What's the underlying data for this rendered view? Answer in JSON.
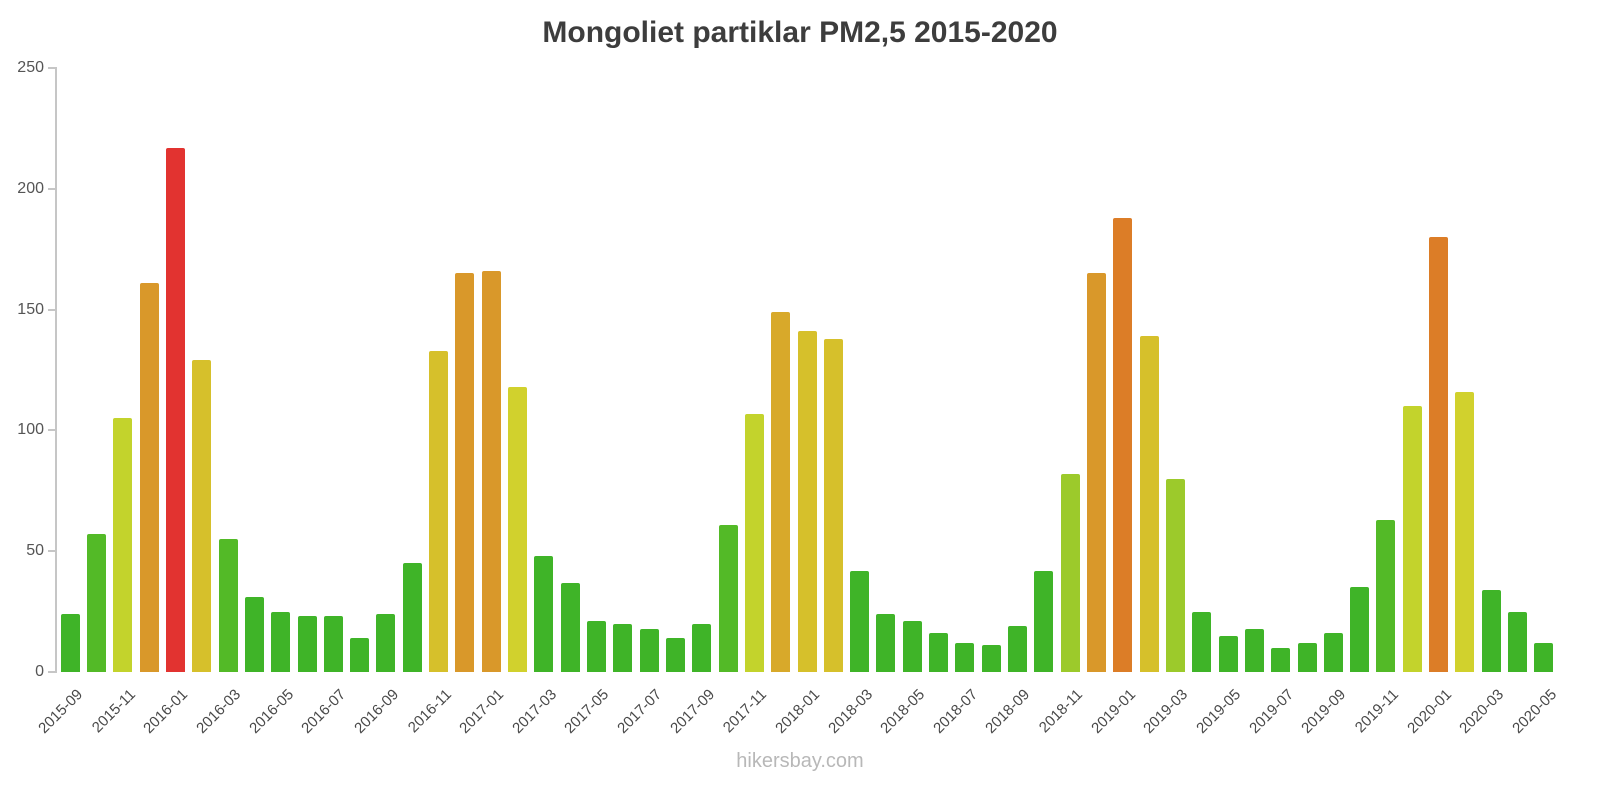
{
  "chart_data": {
    "type": "bar",
    "title": "Mongoliet partiklar PM2,5 2015-2020",
    "xlabel": "",
    "ylabel": "",
    "ylim": [
      0,
      250
    ],
    "yticks": [
      0,
      50,
      100,
      150,
      200,
      250
    ],
    "grid": false,
    "legend": "none",
    "x_tick_every": 2,
    "categories": [
      "2015-09",
      "2015-10",
      "2015-11",
      "2015-12",
      "2016-01",
      "2016-02",
      "2016-03",
      "2016-04",
      "2016-05",
      "2016-06",
      "2016-07",
      "2016-08",
      "2016-09",
      "2016-10",
      "2016-11",
      "2016-12",
      "2017-01",
      "2017-02",
      "2017-03",
      "2017-04",
      "2017-05",
      "2017-06",
      "2017-07",
      "2017-08",
      "2017-09",
      "2017-10",
      "2017-11",
      "2017-12",
      "2018-01",
      "2018-02",
      "2018-03",
      "2018-04",
      "2018-05",
      "2018-06",
      "2018-07",
      "2018-08",
      "2018-09",
      "2018-10",
      "2018-11",
      "2018-12",
      "2019-01",
      "2019-02",
      "2019-03",
      "2019-04",
      "2019-05",
      "2019-06",
      "2019-07",
      "2019-08",
      "2019-09",
      "2019-10",
      "2019-11",
      "2019-12",
      "2020-01",
      "2020-02",
      "2020-03",
      "2020-04",
      "2020-05"
    ],
    "values": [
      24,
      57,
      105,
      161,
      217,
      129,
      55,
      31,
      25,
      23,
      23,
      14,
      24,
      45,
      133,
      165,
      166,
      118,
      48,
      37,
      21,
      20,
      18,
      14,
      20,
      61,
      107,
      149,
      141,
      138,
      42,
      24,
      21,
      16,
      12,
      11,
      19,
      42,
      82,
      165,
      188,
      139,
      80,
      25,
      15,
      18,
      10,
      12,
      16,
      35,
      63,
      110,
      180,
      116,
      34,
      25,
      12
    ],
    "colors": [
      "#3fb428",
      "#53ba27",
      "#c3d32c",
      "#d9982a",
      "#e23330",
      "#d6c02b",
      "#53ba27",
      "#3fb428",
      "#3fb428",
      "#3fb428",
      "#3fb428",
      "#3fb428",
      "#3fb428",
      "#3fb428",
      "#d6c02b",
      "#d9982a",
      "#d9982a",
      "#d1d12d",
      "#3fb428",
      "#3fb428",
      "#3fb428",
      "#3fb428",
      "#3fb428",
      "#3fb428",
      "#3fb428",
      "#53ba27",
      "#c3d32c",
      "#d8a92a",
      "#d6c02b",
      "#d6c02b",
      "#3fb428",
      "#3fb428",
      "#3fb428",
      "#3fb428",
      "#3fb428",
      "#3fb428",
      "#3fb428",
      "#3fb428",
      "#9cca2b",
      "#d9982a",
      "#dc7d27",
      "#d6c02b",
      "#9cca2b",
      "#3fb428",
      "#3fb428",
      "#3fb428",
      "#3fb428",
      "#3fb428",
      "#3fb428",
      "#3fb428",
      "#53ba27",
      "#c3d32c",
      "#dc7d27",
      "#d1d12d",
      "#3fb428",
      "#3fb428",
      "#3fb428"
    ],
    "color_scale_legend": {
      "green": "#3fb428",
      "yellow_green": "#9cca2b",
      "yellow": "#d1d12d",
      "mustard": "#d6c02b",
      "amber": "#d9982a",
      "orange": "#dc7d27",
      "red": "#e23330"
    }
  },
  "footer": {
    "text": "hikersbay.com"
  }
}
